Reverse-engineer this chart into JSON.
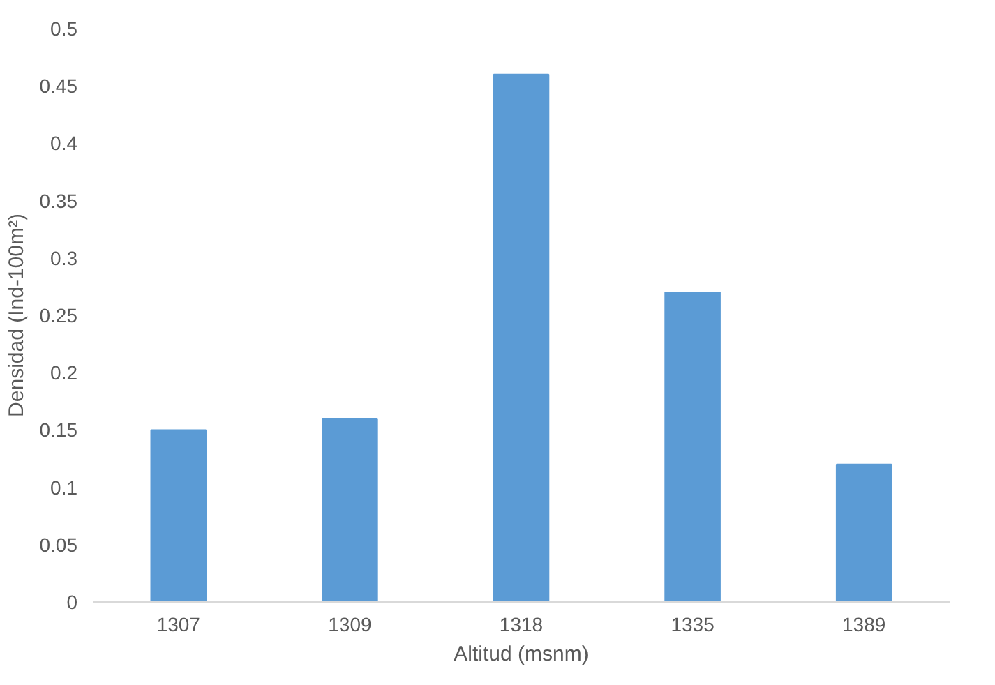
{
  "chart_data": {
    "type": "bar",
    "categories": [
      "1307",
      "1309",
      "1318",
      "1335",
      "1389"
    ],
    "values": [
      0.15,
      0.16,
      0.46,
      0.27,
      0.12
    ],
    "color": "#5b9bd5",
    "xlabel": "Altitud (msnm)",
    "ylabel": "Densidad (Ind-100m²)",
    "ylim": [
      0,
      0.5
    ],
    "yticks": [
      0,
      {
        "value": 0.05,
        "label": "0.05"
      },
      {
        "value": 0.1,
        "label": "0.1"
      },
      {
        "value": 0.15,
        "label": "0.15"
      },
      {
        "value": 0.2,
        "label": "0.2"
      },
      {
        "value": 0.25,
        "label": "0.25"
      },
      {
        "value": 0.3,
        "label": "0.3"
      },
      {
        "value": 0.35,
        "label": "0.35"
      },
      {
        "value": 0.4,
        "label": "0.4"
      },
      {
        "value": 0.45,
        "label": "0.45"
      },
      {
        "value": 0.5,
        "label": "0.5"
      }
    ],
    "grid": false
  }
}
